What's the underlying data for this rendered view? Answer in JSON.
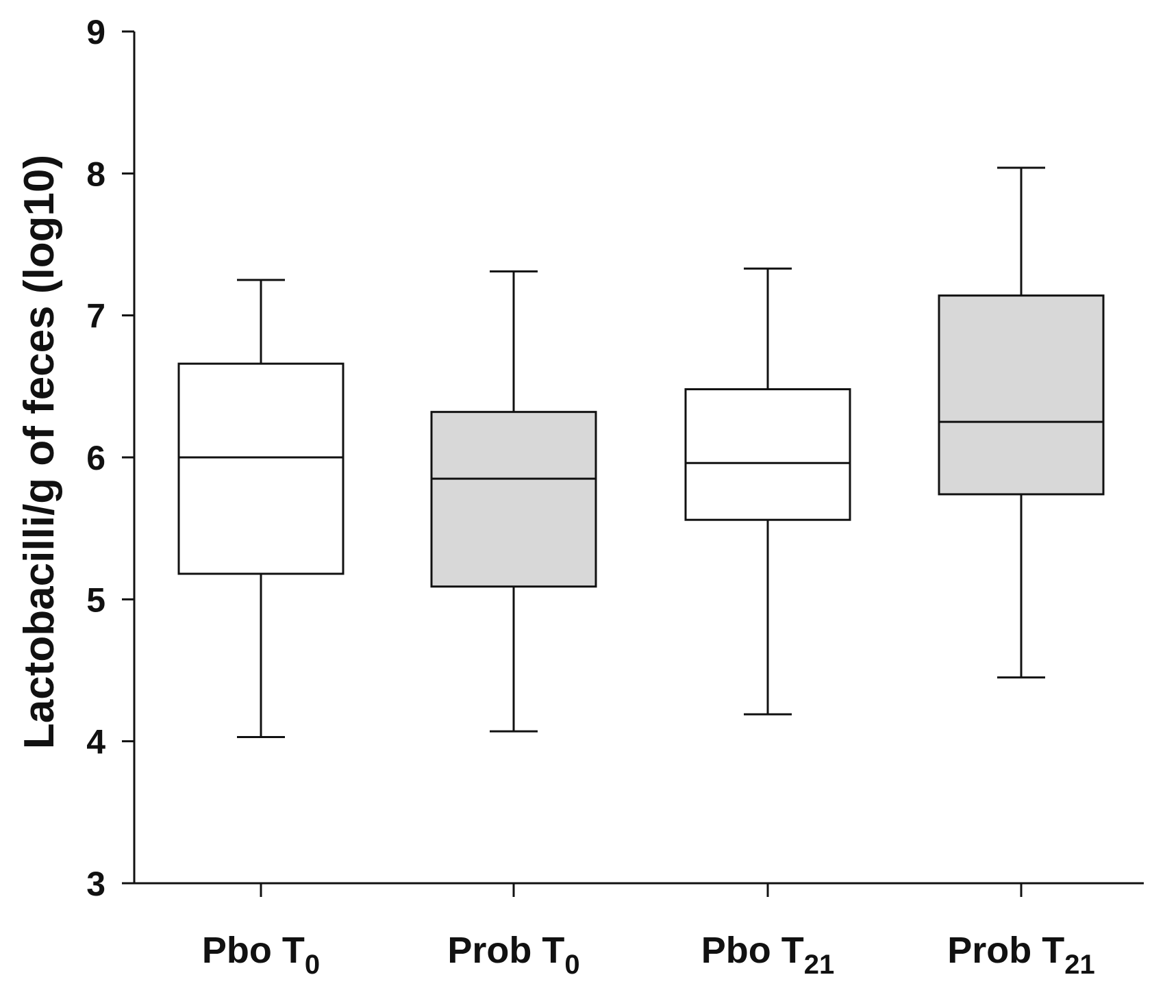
{
  "chart_data": {
    "type": "box",
    "title": "",
    "xlabel": "",
    "ylabel": "Lactobacilli/g of feces (log10)",
    "ylim": [
      3,
      9
    ],
    "yticks": [
      "3",
      "4",
      "5",
      "6",
      "7",
      "8",
      "9"
    ],
    "categories": [
      {
        "name": "Pbo T",
        "sub": "0"
      },
      {
        "name": "Prob T",
        "sub": "0"
      },
      {
        "name": "Pbo T",
        "sub": "21"
      },
      {
        "name": "Prob T",
        "sub": "21"
      }
    ],
    "boxes": [
      {
        "min": 4.03,
        "q1": 5.18,
        "median": 6.0,
        "q3": 6.66,
        "max": 7.25,
        "fill": "#ffffff"
      },
      {
        "min": 4.07,
        "q1": 5.09,
        "median": 5.85,
        "q3": 6.32,
        "max": 7.31,
        "fill": "#d8d8d8"
      },
      {
        "min": 4.19,
        "q1": 5.56,
        "median": 5.96,
        "q3": 6.48,
        "max": 7.33,
        "fill": "#ffffff"
      },
      {
        "min": 4.45,
        "q1": 5.74,
        "median": 6.25,
        "q3": 7.14,
        "max": 8.04,
        "fill": "#d8d8d8"
      }
    ],
    "colors": {
      "line": "#111111",
      "probiotic_fill": "#d8d8d8",
      "placebo_fill": "#ffffff"
    }
  }
}
